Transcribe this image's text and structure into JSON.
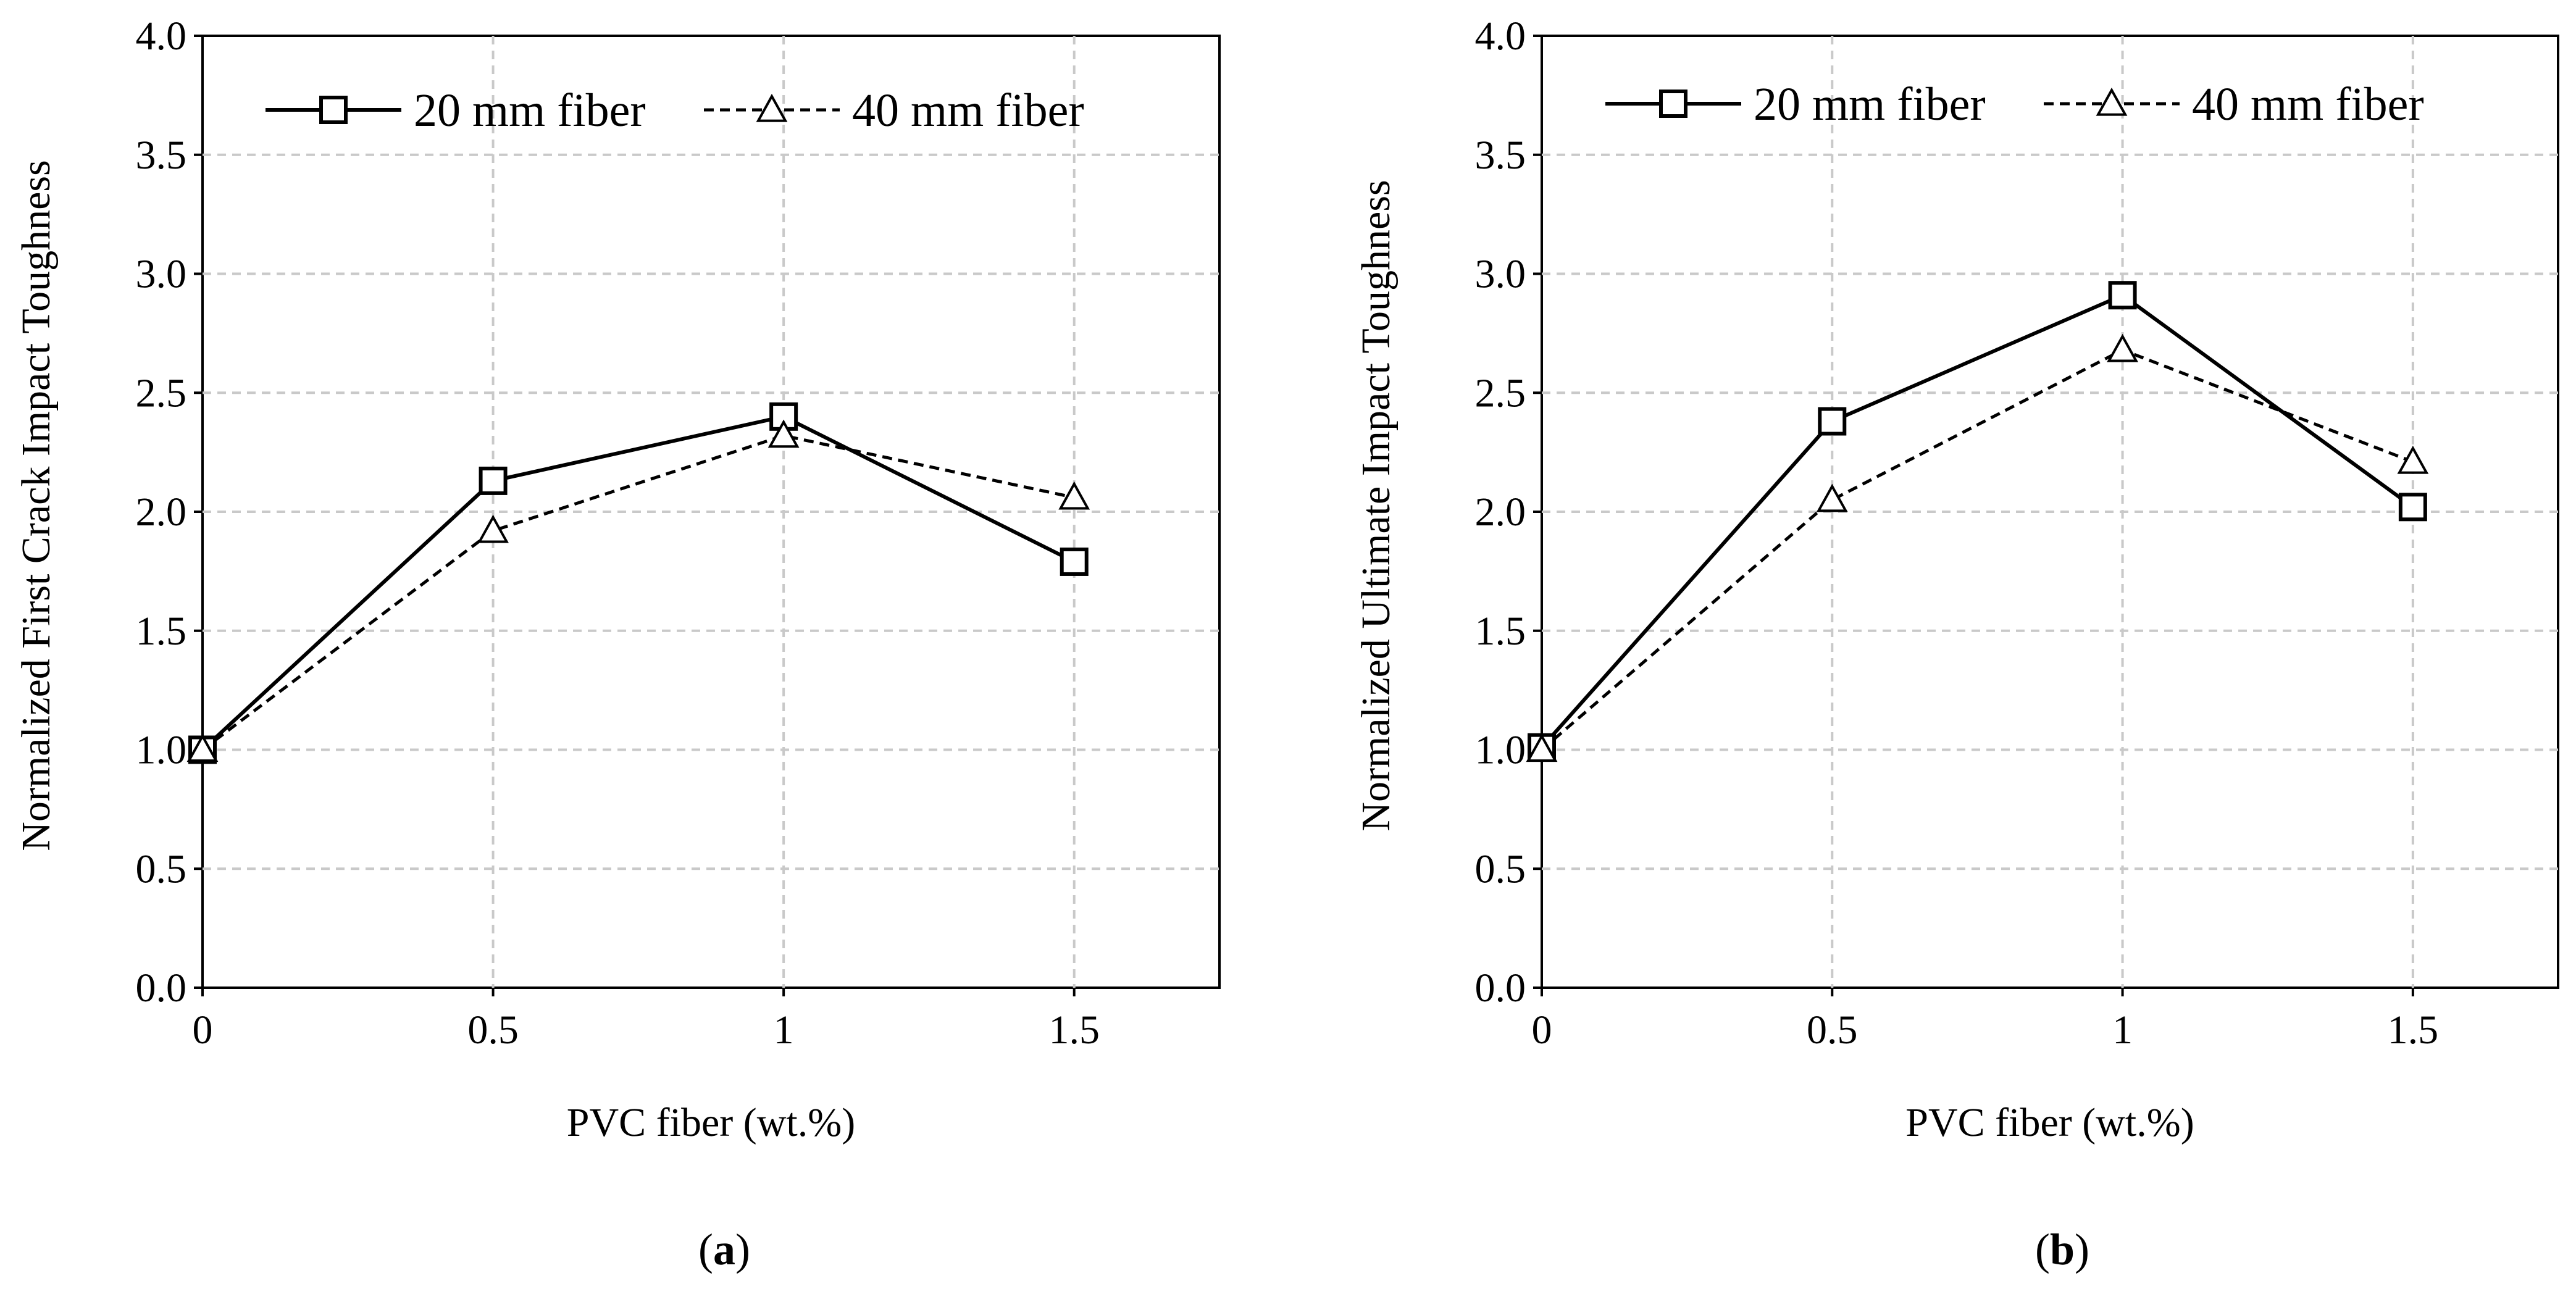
{
  "charts": [
    {
      "id": "a",
      "type": "line",
      "caption": {
        "open": "(",
        "letter": "a",
        "close": ")"
      },
      "xlabel": "PVC fiber (wt.%)",
      "ylabel": "Normalized First Crack Impact Toughness",
      "xlim": [
        0,
        1.75
      ],
      "ylim": [
        0,
        4.0
      ],
      "xticks": [
        0,
        0.5,
        1,
        1.5
      ],
      "xtick_labels": [
        "0",
        "0.5",
        "1",
        "1.5"
      ],
      "yticks": [
        0,
        0.5,
        1.0,
        1.5,
        2.0,
        2.5,
        3.0,
        3.5,
        4.0
      ],
      "ytick_labels": [
        "0.0",
        "0.5",
        "1.0",
        "1.5",
        "2.0",
        "2.5",
        "3.0",
        "3.5",
        "4.0"
      ],
      "grid": true,
      "legend_position": "top",
      "series": [
        {
          "name": "20 mm fiber",
          "marker": "square",
          "line": "solid",
          "x": [
            0,
            0.5,
            1,
            1.5
          ],
          "values": [
            1.0,
            2.13,
            2.4,
            1.79
          ]
        },
        {
          "name": "40 mm fiber",
          "marker": "triangle",
          "line": "dashed",
          "x": [
            0,
            0.5,
            1,
            1.5
          ],
          "values": [
            1.0,
            1.92,
            2.32,
            2.06
          ]
        }
      ]
    },
    {
      "id": "b",
      "type": "line",
      "caption": {
        "open": "(",
        "letter": "b",
        "close": ")"
      },
      "xlabel": "PVC fiber (wt.%)",
      "ylabel": "Normalized Ultimate  Impact Toughness",
      "xlim": [
        0,
        1.75
      ],
      "ylim": [
        0,
        4.0
      ],
      "xticks": [
        0,
        0.5,
        1,
        1.5
      ],
      "xtick_labels": [
        "0",
        "0.5",
        "1",
        "1.5"
      ],
      "yticks": [
        0,
        0.5,
        1.0,
        1.5,
        2.0,
        2.5,
        3.0,
        3.5,
        4.0
      ],
      "ytick_labels": [
        "0.0",
        "0.5",
        "1.0",
        "1.5",
        "2.0",
        "2.5",
        "3.0",
        "3.5",
        "4.0"
      ],
      "grid": true,
      "legend_position": "top",
      "series": [
        {
          "name": "20 mm fiber",
          "marker": "square",
          "line": "solid",
          "x": [
            0,
            0.5,
            1,
            1.5
          ],
          "values": [
            1.01,
            2.38,
            2.91,
            2.02
          ]
        },
        {
          "name": "40 mm fiber",
          "marker": "triangle",
          "line": "dashed",
          "x": [
            0,
            0.5,
            1,
            1.5
          ],
          "values": [
            1.0,
            2.05,
            2.68,
            2.21
          ]
        }
      ]
    }
  ],
  "chart_data": [
    {
      "type": "line",
      "title": "(a)",
      "xlabel": "PVC fiber (wt.%)",
      "ylabel": "Normalized First Crack Impact Toughness",
      "x": [
        0,
        0.5,
        1,
        1.5
      ],
      "xlim": [
        0,
        1.75
      ],
      "ylim": [
        0,
        4.0
      ],
      "grid": true,
      "legend": "top",
      "series": [
        {
          "name": "20 mm fiber",
          "values": [
            1.0,
            2.13,
            2.4,
            1.79
          ]
        },
        {
          "name": "40 mm fiber",
          "values": [
            1.0,
            1.92,
            2.32,
            2.06
          ]
        }
      ]
    },
    {
      "type": "line",
      "title": "(b)",
      "xlabel": "PVC fiber (wt.%)",
      "ylabel": "Normalized Ultimate  Impact Toughness",
      "x": [
        0,
        0.5,
        1,
        1.5
      ],
      "xlim": [
        0,
        1.75
      ],
      "ylim": [
        0,
        4.0
      ],
      "grid": true,
      "legend": "top",
      "series": [
        {
          "name": "20 mm fiber",
          "values": [
            1.01,
            2.38,
            2.91,
            2.02
          ]
        },
        {
          "name": "40 mm fiber",
          "values": [
            1.0,
            2.05,
            2.68,
            2.21
          ]
        }
      ]
    }
  ]
}
